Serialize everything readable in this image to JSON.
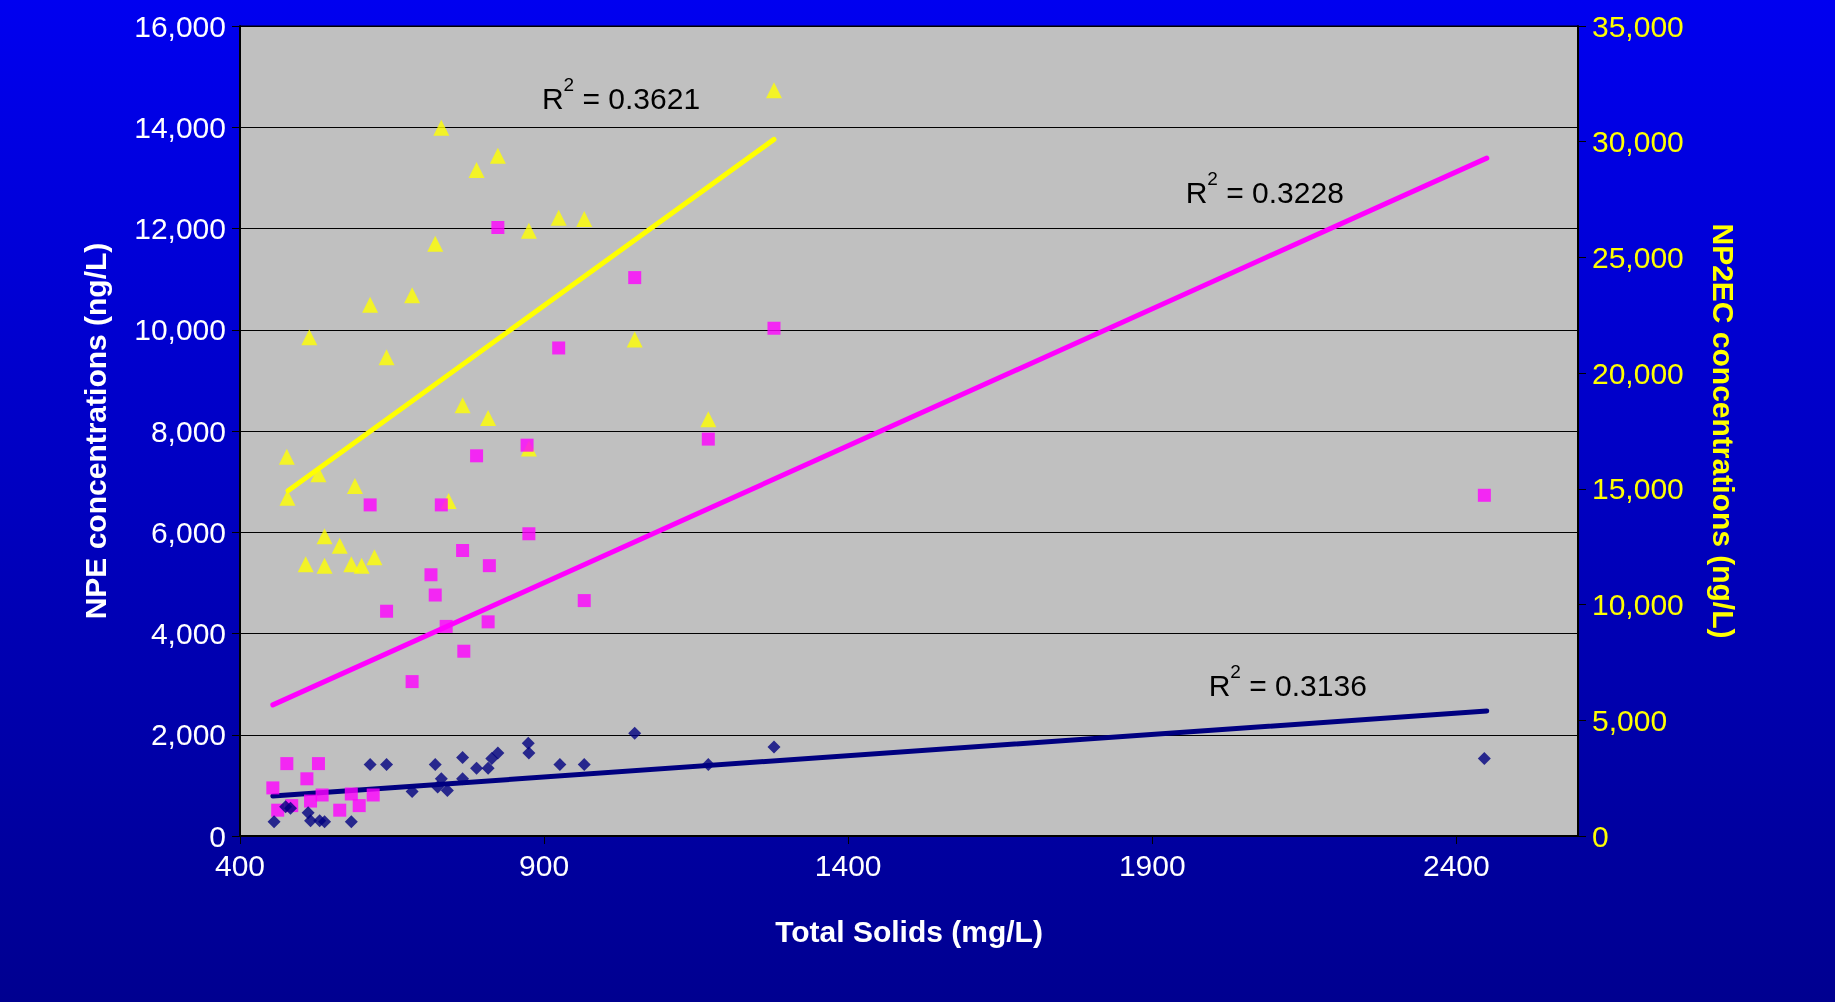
{
  "chart_data": {
    "type": "scatter",
    "xlabel": "Total Solids (mg/L)",
    "ylabel": "NPE concentrations (ng/L)",
    "y2label": "NP2EC concentrations (ng/L)",
    "xlim": [
      400,
      2600
    ],
    "xticks": [
      400,
      900,
      1400,
      1900,
      2400
    ],
    "ylim": [
      0,
      16000
    ],
    "yticks": [
      0,
      {
        "value": 2000,
        "label": "2,000"
      },
      {
        "value": 4000,
        "label": "4,000"
      },
      {
        "value": 6000,
        "label": "6,000"
      },
      {
        "value": 8000,
        "label": "8,000"
      },
      {
        "value": 10000,
        "label": "10,000"
      },
      {
        "value": 12000,
        "label": "12,000"
      },
      {
        "value": 14000,
        "label": "14,000"
      },
      {
        "value": 16000,
        "label": "16,000"
      }
    ],
    "y2lim": [
      0,
      35000
    ],
    "y2ticks": [
      0,
      {
        "value": 5000,
        "label": "5,000"
      },
      {
        "value": 10000,
        "label": "10,000"
      },
      {
        "value": 15000,
        "label": "15,000"
      },
      {
        "value": 20000,
        "label": "20,000"
      },
      {
        "value": 25000,
        "label": "25,000"
      },
      {
        "value": 30000,
        "label": "30,000"
      },
      {
        "value": 35000,
        "label": "35,000"
      }
    ],
    "grid": "y",
    "series": [
      {
        "marker": "triangle",
        "axis": "y2",
        "color": "#ffff00",
        "x": [
          477,
          478,
          514,
          508,
          529,
          539,
          539,
          564,
          583,
          589,
          600,
          614,
          621,
          641,
          683,
          721,
          731,
          743,
          766,
          789,
          808,
          824,
          875,
          875,
          924,
          966,
          1049,
          1170,
          1278
        ],
        "values": [
          16390,
          14620,
          21550,
          11740,
          15630,
          12950,
          11680,
          12540,
          11740,
          15120,
          11680,
          22960,
          12040,
          20690,
          23370,
          25590,
          30600,
          14470,
          18610,
          28780,
          18060,
          29390,
          26150,
          16740,
          26710,
          26660,
          21450,
          18010,
          32220
        ]
      },
      {
        "marker": "square",
        "color": "#ff00ff",
        "x": [
          454,
          462,
          477,
          485,
          510,
          516,
          529,
          535,
          564,
          583,
          596,
          614,
          619,
          641,
          683,
          714,
          721,
          731,
          739,
          766,
          768,
          789,
          808,
          810,
          824,
          872,
          875,
          924,
          966,
          1049,
          1170,
          1278,
          2446
        ],
        "values": [
          950,
          510,
          1430,
          600,
          1130,
          690,
          1430,
          810,
          510,
          830,
          600,
          6540,
          810,
          4440,
          3050,
          5160,
          4760,
          6540,
          4140,
          5640,
          3650,
          7510,
          4230,
          5340,
          12020,
          7720,
          5970,
          9640,
          4650,
          11030,
          7840,
          10030,
          6730
        ]
      },
      {
        "marker": "diamond",
        "color": "#000080",
        "x": [
          456,
          475,
          483,
          512,
          516,
          531,
          539,
          583,
          614,
          641,
          683,
          721,
          725,
          731,
          741,
          766,
          766,
          789,
          808,
          814,
          824,
          874,
          875,
          926,
          966,
          1049,
          1170,
          1278,
          2446
        ],
        "values": [
          280,
          580,
          550,
          460,
          300,
          300,
          280,
          280,
          1410,
          1410,
          880,
          1410,
          970,
          1130,
          900,
          1550,
          1130,
          1340,
          1340,
          1530,
          1640,
          1830,
          1640,
          1410,
          1410,
          2030,
          1410,
          1760,
          1530
        ]
      },
      {
        "type": "line",
        "marker": "none",
        "axis": "y2",
        "color": "#ffff00",
        "x": [
          479,
          1278
        ],
        "values": [
          14920,
          30100
        ]
      },
      {
        "type": "line",
        "marker": "none",
        "color": "#ff00ff",
        "x": [
          454,
          2450
        ],
        "values": [
          2590,
          13390
        ]
      },
      {
        "type": "line",
        "marker": "none",
        "color": "#000080",
        "x": [
          454,
          2450
        ],
        "values": [
          790,
          2470
        ]
      }
    ],
    "annotations": [
      "R$^{2}$ = 0.3621",
      "R$^{2}$ = 0.3228",
      "R$^{2}$ = 0.3136"
    ]
  }
}
